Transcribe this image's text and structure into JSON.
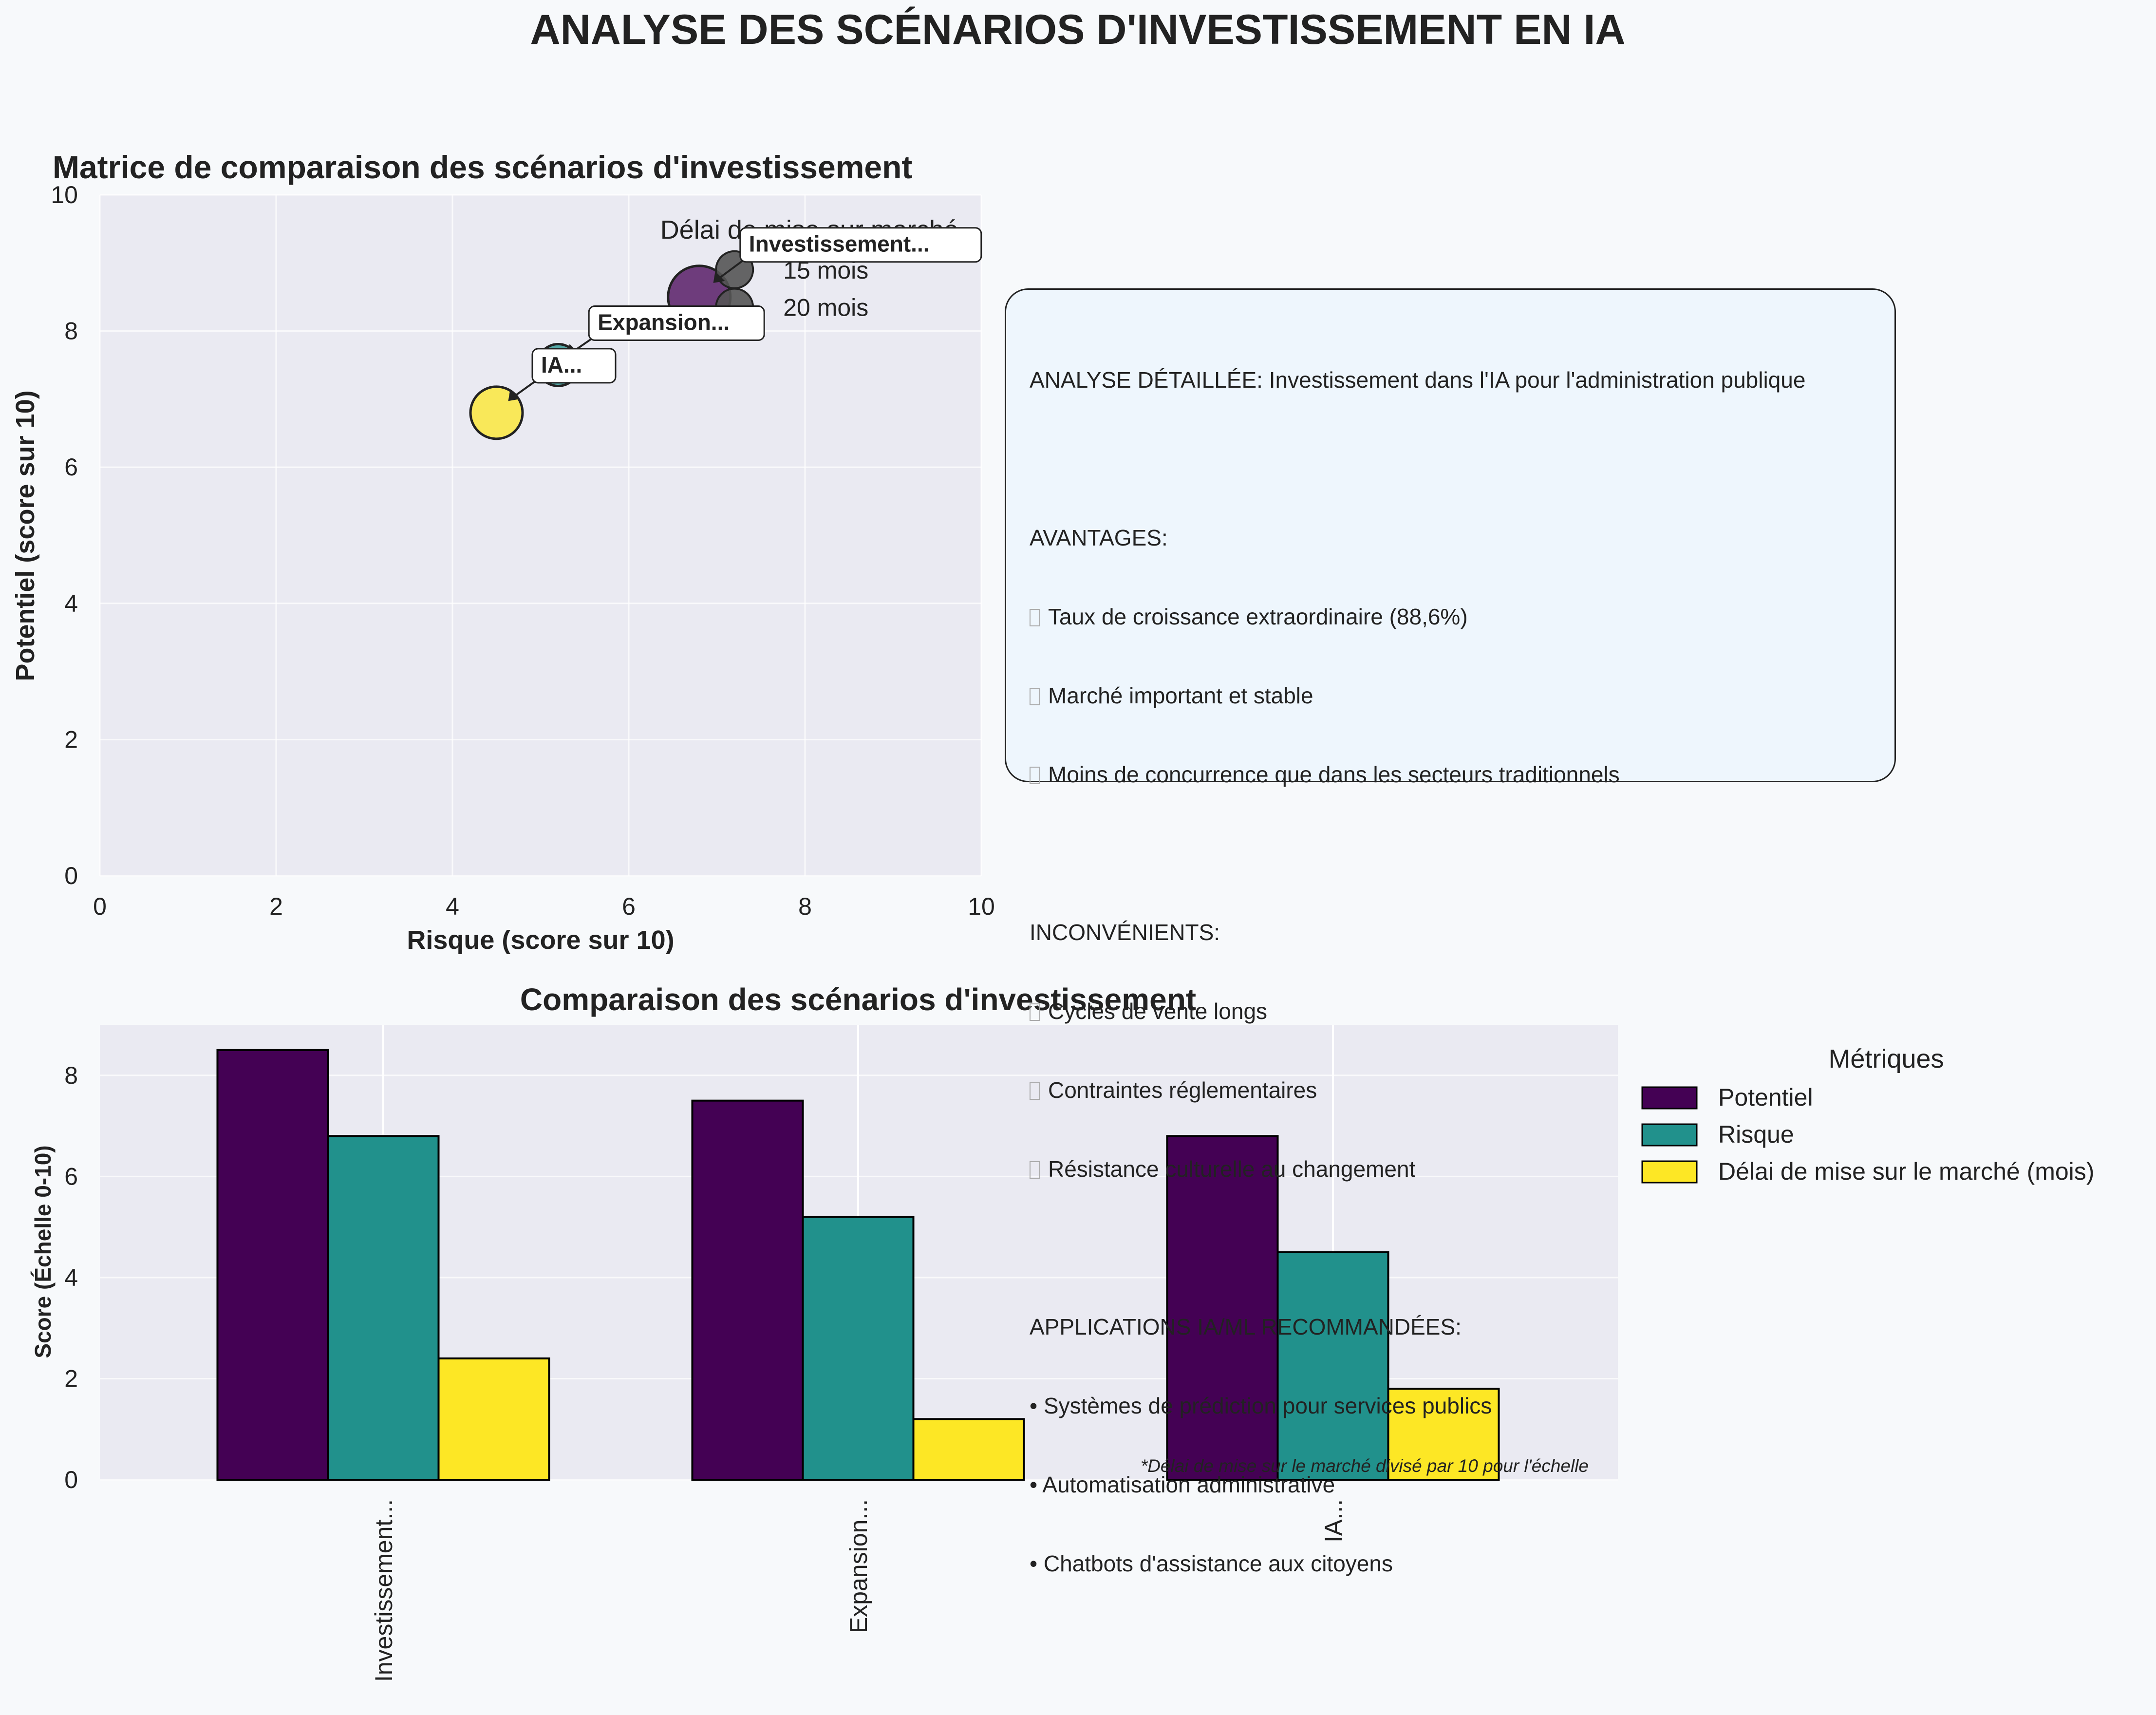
{
  "figure": {
    "title": "ANALYSE DES SCÉNARIOS D'INVESTISSEMENT EN IA"
  },
  "scatter": {
    "title": "Matrice de comparaison des scénarios d'investissement",
    "xlabel": "Risque (score sur 10)",
    "ylabel": "Potentiel (score sur 10)",
    "xticks": [
      "0",
      "2",
      "4",
      "6",
      "8",
      "10"
    ],
    "yticks": [
      "0",
      "2",
      "4",
      "6",
      "8",
      "10"
    ],
    "size_legend": {
      "title": "Délai de mise sur marché",
      "entries": [
        {
          "label": "15 mois",
          "risk": 7.2,
          "potential": 8.9
        },
        {
          "label": "20 mois",
          "risk": 7.2,
          "potential": 8.35
        }
      ]
    }
  },
  "info": {
    "heading": "ANALYSE DÉTAILLÉE: Investissement dans l'IA pour l'administration publique",
    "advantages_title": "AVANTAGES:",
    "advantages": [
      "Taux de croissance extraordinaire (88,6%)",
      "Marché important et stable",
      "Moins de concurrence que dans les secteurs traditionnels"
    ],
    "drawbacks_title": "INCONVÉNIENTS:",
    "drawbacks": [
      "Cycles de vente longs",
      "Contraintes réglementaires",
      "Résistance culturelle au changement"
    ],
    "apps_title": "APPLICATIONS IA/ML RECOMMANDÉES:",
    "apps": [
      "• Systèmes de prédiction pour services publics",
      "• Automatisation administrative",
      "• Chatbots d'assistance aux citoyens"
    ]
  },
  "bars": {
    "title": "Comparaison des scénarios d'investissement",
    "ylabel": "Score (Échelle 0-10)",
    "yticks": [
      "0",
      "2",
      "4",
      "6",
      "8"
    ],
    "note": "*Délai de mise sur le marché divisé par 10 pour l'échelle",
    "legend_title": "Métriques"
  },
  "chart_data": [
    {
      "type": "scatter",
      "title": "Matrice de comparaison des scénarios d'investissement",
      "xlabel": "Risque (score sur 10)",
      "ylabel": "Potentiel (score sur 10)",
      "xlim": [
        0,
        10
      ],
      "ylim": [
        0,
        10
      ],
      "grid": true,
      "points": [
        {
          "label": "Investissement...",
          "risk": 6.8,
          "potential": 8.5,
          "delay_months": 24,
          "color": "#440154"
        },
        {
          "label": "Expansion...",
          "risk": 5.2,
          "potential": 7.5,
          "delay_months": 12,
          "color": "#21918c"
        },
        {
          "label": "IA...",
          "risk": 4.5,
          "potential": 6.8,
          "delay_months": 18,
          "color": "#fde725"
        }
      ]
    },
    {
      "type": "bar",
      "title": "Comparaison des scénarios d'investissement",
      "ylabel": "Score (Échelle 0-10)",
      "ylim": [
        0,
        9
      ],
      "grid": true,
      "legend": "right",
      "categories": [
        "Investissement...",
        "Expansion...",
        "IA..."
      ],
      "series": [
        {
          "name": "Potentiel",
          "color": "#440154",
          "values": [
            8.5,
            7.5,
            6.8
          ]
        },
        {
          "name": "Risque",
          "color": "#21918c",
          "values": [
            6.8,
            5.2,
            4.5
          ]
        },
        {
          "name": "Délai de mise sur le marché (mois)",
          "color": "#fde725",
          "values": [
            2.4,
            1.2,
            1.8
          ]
        }
      ]
    }
  ]
}
